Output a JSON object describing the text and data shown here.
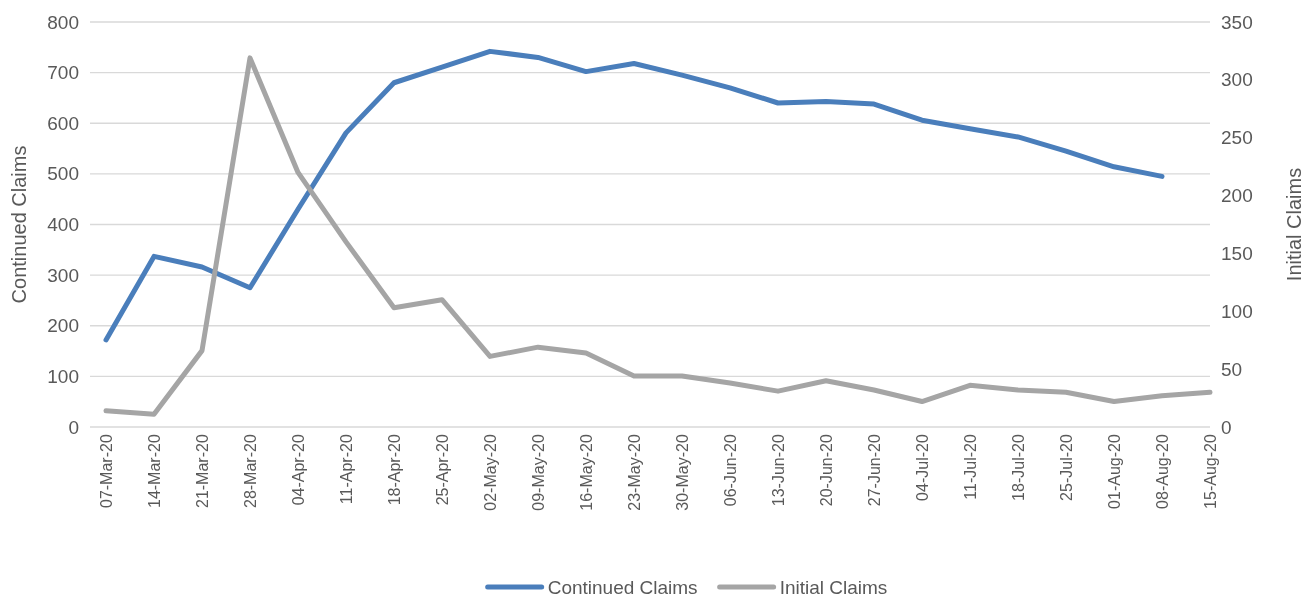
{
  "chart_data": {
    "type": "line",
    "categories": [
      "07-Mar-20",
      "14-Mar-20",
      "21-Mar-20",
      "28-Mar-20",
      "04-Apr-20",
      "11-Apr-20",
      "18-Apr-20",
      "25-Apr-20",
      "02-May-20",
      "09-May-20",
      "16-May-20",
      "23-May-20",
      "30-May-20",
      "06-Jun-20",
      "13-Jun-20",
      "20-Jun-20",
      "27-Jun-20",
      "04-Jul-20",
      "11-Jul-20",
      "18-Jul-20",
      "25-Jul-20",
      "01-Aug-20",
      "08-Aug-20",
      "15-Aug-20"
    ],
    "series": [
      {
        "name": "Continued Claims",
        "color": "#4a7ebb",
        "values": [
          172,
          337,
          316,
          275,
          430,
          581,
          680,
          711,
          742,
          730,
          702,
          718,
          695,
          670,
          640,
          643,
          638,
          606,
          589,
          573,
          545,
          514,
          495,
          null
        ]
      },
      {
        "name": "Initial Claims",
        "color": "#a5a5a5",
        "axis": "y2",
        "values": [
          14,
          11,
          66,
          319,
          220,
          160,
          103,
          110,
          61,
          69,
          64,
          44,
          44,
          38,
          31,
          40,
          32,
          22,
          36,
          32,
          30,
          22,
          27,
          30
        ]
      }
    ],
    "ylabel": "Continued Claims",
    "y2label": "Initial Claims",
    "ylim": [
      0,
      800
    ],
    "yticks": [
      0,
      100,
      200,
      300,
      400,
      500,
      600,
      700,
      800
    ],
    "y2lim": [
      0,
      350
    ],
    "y2ticks": [
      0,
      50,
      100,
      150,
      200,
      250,
      300,
      350
    ],
    "grid": "y",
    "legend": "bottom",
    "marker": "none",
    "line_style": "solid"
  }
}
